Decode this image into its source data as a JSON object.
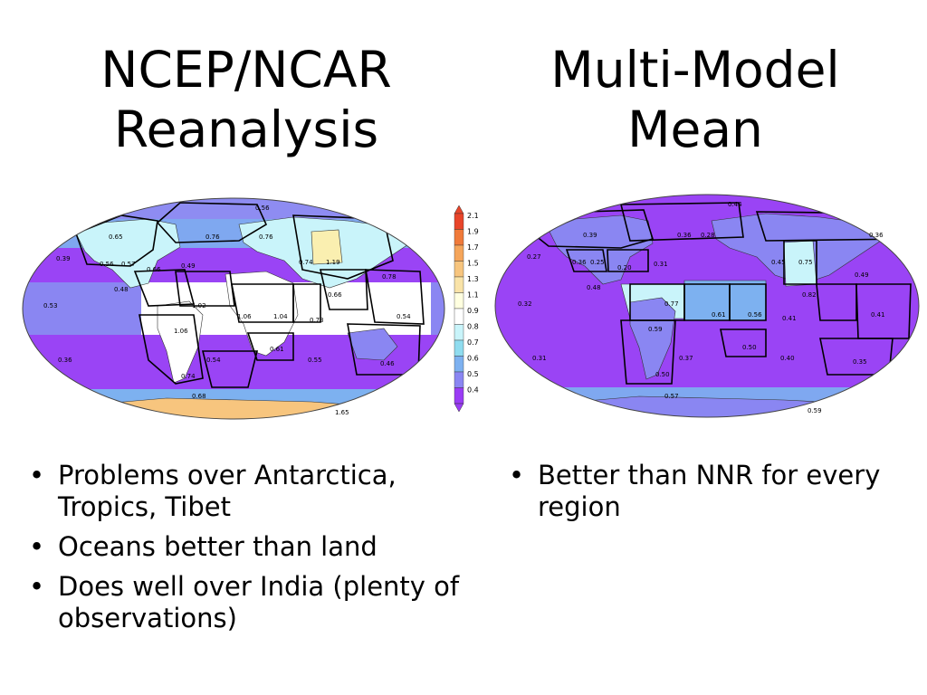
{
  "titles": {
    "left_line1": "NCEP/NCAR",
    "left_line2": "Reanalysis",
    "right_line1": "Multi-Model",
    "right_line2": "Mean"
  },
  "colorbar": {
    "ticks": [
      "2.1",
      "1.9",
      "1.7",
      "1.5",
      "1.3",
      "1.1",
      "0.9",
      "0.8",
      "0.7",
      "0.6",
      "0.5",
      "0.4"
    ],
    "colors": [
      "#e8452a",
      "#f07a3a",
      "#f5a55a",
      "#f7c57e",
      "#f9e3a8",
      "#ffffe0",
      "#ffffff",
      "#c9f4fa",
      "#8fdcef",
      "#7db1f0",
      "#8a86f2",
      "#9a3cf5"
    ]
  },
  "left_map": {
    "region_values": [
      "0.56",
      "0.65",
      "0.76",
      "0.76",
      "0.39",
      "0.56",
      "0.57",
      "0.66",
      "0.49",
      "0.74",
      "1.19",
      "0.78",
      "0.48",
      "0.53",
      "1.02",
      "1.06",
      "1.04",
      "0.73",
      "0.66",
      "0.54",
      "1.06",
      "0.36",
      "0.74",
      "0.54",
      "0.61",
      "0.55",
      "0.46",
      "0.68",
      "1.65"
    ]
  },
  "right_map": {
    "region_values": [
      "0.44",
      "0.39",
      "0.36",
      "0.28",
      "0.36",
      "0.27",
      "0.36",
      "0.25",
      "0.20",
      "0.31",
      "0.45",
      "0.75",
      "0.49",
      "0.48",
      "0.32",
      "0.77",
      "0.61",
      "0.56",
      "0.41",
      "0.82",
      "0.41",
      "0.59",
      "0.31",
      "0.37",
      "0.50",
      "0.40",
      "0.35",
      "0.50",
      "0.57",
      "0.59"
    ]
  },
  "bullets_left": [
    "Problems over Antarctica, Tropics, Tibet",
    "Oceans better than land",
    "Does well over India (plenty of  observations)"
  ],
  "bullets_right": [
    "Better than NNR for every region"
  ]
}
